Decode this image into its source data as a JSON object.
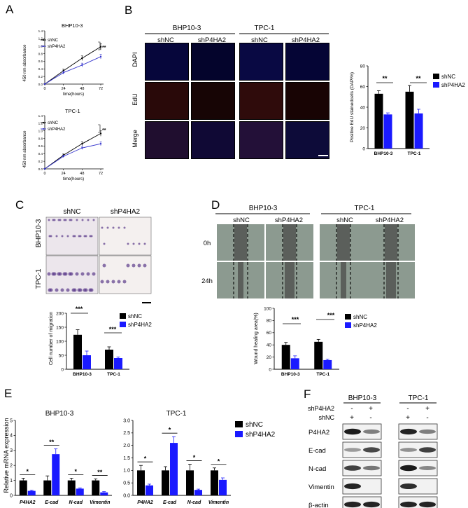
{
  "panels": {
    "A": "A",
    "B": "B",
    "C": "C",
    "D": "D",
    "E": "E",
    "F": "F"
  },
  "panelA": {
    "charts": [
      {
        "title": "BHP10-3",
        "ylabel": "450 nm absorbance",
        "xlabel": "time(hours)",
        "xticks": [
          "0",
          "24",
          "48",
          "72"
        ],
        "yticks": [
          "0.0",
          "0.2",
          "0.4",
          "0.6",
          "0.8",
          "1.0",
          "1.2",
          "1.4"
        ],
        "legend": [
          "shNC",
          "shP4HA2"
        ],
        "sig": "**"
      },
      {
        "title": "TPC-1",
        "ylabel": "450 nm absorbance",
        "xlabel": "time(hours)",
        "xticks": [
          "0",
          "24",
          "48",
          "72"
        ],
        "yticks": [
          "0.0",
          "0.2",
          "0.4",
          "0.6",
          "0.8",
          "1.0",
          "1.2",
          "1.4"
        ],
        "legend": [
          "shNC",
          "shP4HA2"
        ],
        "sig": "**"
      }
    ]
  },
  "panelB": {
    "groups": [
      "BHP10-3",
      "TPC-1"
    ],
    "columns": [
      "shNC",
      "shP4HA2",
      "shNC",
      "shP4HA2"
    ],
    "rows": [
      "DAPI",
      "EdU",
      "Merge"
    ],
    "chart": {
      "ylabel": "Positive EdU stainedcells (DAPI%)",
      "categories": [
        "BHP10-3",
        "TPC-1"
      ],
      "yticks": [
        "0",
        "20",
        "40",
        "60",
        "80"
      ],
      "legend": [
        "shNC",
        "shP4HA2"
      ],
      "sig": [
        "**",
        "**"
      ]
    }
  },
  "panelC": {
    "columns": [
      "shNC",
      "shP4HA2"
    ],
    "rows": [
      "BHP10-3",
      "TPC-1"
    ],
    "chart": {
      "ylabel": "Cell number of migration",
      "categories": [
        "BHP10-3",
        "TPC-1"
      ],
      "yticks": [
        "0",
        "50",
        "100",
        "150",
        "200"
      ],
      "legend": [
        "shNC",
        "shP4HA2"
      ],
      "sig": [
        "***",
        "***"
      ]
    }
  },
  "panelD": {
    "groups": [
      "BHP10-3",
      "TPC-1"
    ],
    "columns": [
      "shNC",
      "shP4HA2",
      "shNC",
      "shP4HA2"
    ],
    "rows": [
      "0h",
      "24h"
    ],
    "chart": {
      "ylabel": "Wound healing area(%)",
      "categories": [
        "BHP10-3",
        "TPC-1"
      ],
      "yticks": [
        "0",
        "20",
        "40",
        "60",
        "80",
        "100"
      ],
      "legend": [
        "shNC",
        "shP4HA2"
      ],
      "sig": [
        "***",
        "***"
      ]
    }
  },
  "panelE": {
    "ylabel": "Relative mRNA expression",
    "legend": [
      "shNC",
      "shP4HA2"
    ],
    "charts": [
      {
        "title": "BHP10-3",
        "categories": [
          "P4HA2",
          "E-cad",
          "N-cad",
          "Vimentin"
        ],
        "yticks": [
          "0",
          "1",
          "2",
          "3",
          "4",
          "5"
        ],
        "sig": [
          "*",
          "**",
          "*",
          "**"
        ]
      },
      {
        "title": "TPC-1",
        "categories": [
          "P4HA2",
          "E-cad",
          "N-cad",
          "Vimentin"
        ],
        "yticks": [
          "0.0",
          "0.5",
          "1.0",
          "1.5",
          "2.0",
          "2.5",
          "3.0"
        ],
        "sig": [
          "*",
          "*",
          "*",
          "*"
        ]
      }
    ]
  },
  "panelF": {
    "groups": [
      "BHP10-3",
      "TPC-1"
    ],
    "conditions": [
      {
        "label": "shP4HA2",
        "marks": [
          "-",
          "+",
          "-",
          "+"
        ]
      },
      {
        "label": "shNC",
        "marks": [
          "+",
          "-",
          "+",
          "-"
        ]
      }
    ],
    "bands": [
      "P4HA2",
      "E-cad",
      "N-cad",
      "Vimentin",
      "β-actin"
    ]
  },
  "chart_data": [
    {
      "type": "line",
      "title": "BHP10-3",
      "xlabel": "time(hours)",
      "ylabel": "450 nm absorbance",
      "xlim": [
        0,
        72
      ],
      "ylim": [
        0,
        1.4
      ],
      "x": [
        0,
        24,
        48,
        72
      ],
      "series": [
        {
          "name": "shNC",
          "values": [
            0.0,
            0.35,
            0.68,
            0.98
          ],
          "errors": [
            0.01,
            0.04,
            0.06,
            0.08
          ],
          "color": "#000000"
        },
        {
          "name": "shP4HA2",
          "values": [
            0.0,
            0.3,
            0.5,
            0.72
          ],
          "errors": [
            0.01,
            0.04,
            0.05,
            0.06
          ],
          "color": "#3333cc"
        }
      ]
    },
    {
      "type": "line",
      "title": "TPC-1",
      "xlabel": "time(hours)",
      "ylabel": "450 nm absorbance",
      "xlim": [
        0,
        72
      ],
      "ylim": [
        0,
        1.4
      ],
      "x": [
        0,
        24,
        48,
        72
      ],
      "series": [
        {
          "name": "shNC",
          "values": [
            0.0,
            0.36,
            0.66,
            0.93
          ],
          "errors": [
            0.01,
            0.03,
            0.05,
            0.07
          ],
          "color": "#000000"
        },
        {
          "name": "shP4HA2",
          "values": [
            0.0,
            0.33,
            0.55,
            0.66
          ],
          "errors": [
            0.01,
            0.03,
            0.04,
            0.05
          ],
          "color": "#3333cc"
        }
      ]
    },
    {
      "type": "bar",
      "ylabel": "Positive EdU stainedcells (DAPI%)",
      "ylim": [
        0,
        80
      ],
      "categories": [
        "BHP10-3",
        "TPC-1"
      ],
      "series": [
        {
          "name": "shNC",
          "values": [
            53,
            55
          ],
          "errors": [
            3,
            6
          ],
          "color": "#000000"
        },
        {
          "name": "shP4HA2",
          "values": [
            33,
            34
          ],
          "errors": [
            1.5,
            4
          ],
          "color": "#1a1aff"
        }
      ]
    },
    {
      "type": "bar",
      "ylabel": "Cell number of migration",
      "ylim": [
        0,
        200
      ],
      "categories": [
        "BHP10-3",
        "TPC-1"
      ],
      "series": [
        {
          "name": "shNC",
          "values": [
            123,
            70
          ],
          "errors": [
            18,
            10
          ],
          "color": "#000000"
        },
        {
          "name": "shP4HA2",
          "values": [
            50,
            40
          ],
          "errors": [
            15,
            4
          ],
          "color": "#1a1aff"
        }
      ]
    },
    {
      "type": "bar",
      "ylabel": "Wound healing area(%)",
      "ylim": [
        0,
        100
      ],
      "categories": [
        "BHP10-3",
        "TPC-1"
      ],
      "series": [
        {
          "name": "shNC",
          "values": [
            40,
            45
          ],
          "errors": [
            4,
            4
          ],
          "color": "#000000"
        },
        {
          "name": "shP4HA2",
          "values": [
            18,
            15
          ],
          "errors": [
            4,
            1.5
          ],
          "color": "#1a1aff"
        }
      ]
    },
    {
      "type": "bar",
      "title": "BHP10-3",
      "ylabel": "Relative mRNA expression",
      "ylim": [
        0,
        5
      ],
      "categories": [
        "P4HA2",
        "E-cad",
        "N-cad",
        "Vimentin"
      ],
      "series": [
        {
          "name": "shNC",
          "values": [
            1.0,
            1.0,
            1.0,
            1.0
          ],
          "errors": [
            0.15,
            0.3,
            0.15,
            0.1
          ],
          "color": "#000000"
        },
        {
          "name": "shP4HA2",
          "values": [
            0.3,
            2.75,
            0.45,
            0.2
          ],
          "errors": [
            0.05,
            0.35,
            0.05,
            0.05
          ],
          "color": "#1a1aff"
        }
      ]
    },
    {
      "type": "bar",
      "title": "TPC-1",
      "ylabel": "Relative mRNA expression",
      "ylim": [
        0,
        3
      ],
      "categories": [
        "P4HA2",
        "E-cad",
        "N-cad",
        "Vimentin"
      ],
      "series": [
        {
          "name": "shNC",
          "values": [
            1.0,
            1.0,
            1.0,
            1.0
          ],
          "errors": [
            0.2,
            0.15,
            0.25,
            0.1
          ],
          "color": "#000000"
        },
        {
          "name": "shP4HA2",
          "values": [
            0.4,
            2.1,
            0.22,
            0.62
          ],
          "errors": [
            0.05,
            0.25,
            0.03,
            0.08
          ],
          "color": "#1a1aff"
        }
      ]
    }
  ]
}
